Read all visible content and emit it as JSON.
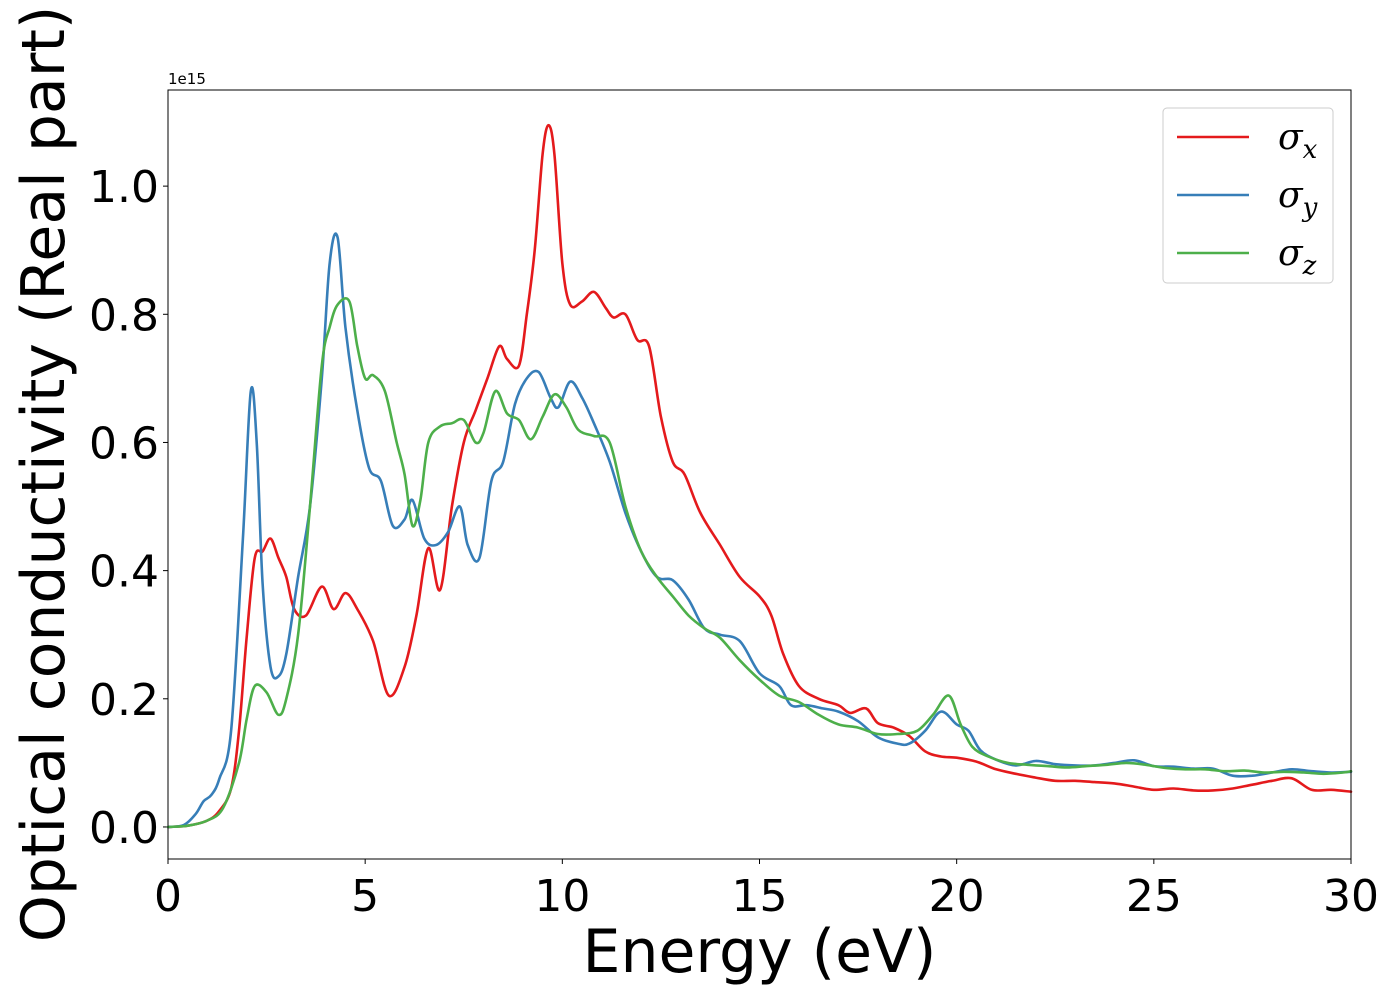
{
  "chart_data": {
    "type": "line",
    "xlabel": "Energy (eV)",
    "ylabel": "Optical conductivity (Real part)",
    "offset_text": "1e15",
    "xlim": [
      0,
      30
    ],
    "ylim": [
      -0.05,
      1.15
    ],
    "xticks": [
      0,
      5,
      10,
      15,
      20,
      25,
      30
    ],
    "yticks": [
      0.0,
      0.2,
      0.4,
      0.6,
      0.8,
      1.0
    ],
    "ytick_labels": [
      "0.0",
      "0.2",
      "0.4",
      "0.6",
      "0.8",
      "1.0"
    ],
    "grid": false,
    "legend_position": "top-right",
    "series": [
      {
        "name": "σ",
        "subscript": "x",
        "color": "#e41a1c",
        "x": [
          0,
          0.5,
          1.0,
          1.3,
          1.6,
          1.8,
          2.0,
          2.2,
          2.4,
          2.6,
          2.8,
          3.0,
          3.2,
          3.5,
          3.9,
          4.2,
          4.5,
          4.8,
          5.2,
          5.6,
          6.0,
          6.3,
          6.6,
          6.9,
          7.2,
          7.5,
          7.8,
          8.1,
          8.4,
          8.6,
          8.9,
          9.1,
          9.3,
          9.5,
          9.65,
          9.8,
          10.0,
          10.2,
          10.5,
          10.8,
          11.1,
          11.3,
          11.6,
          11.9,
          12.2,
          12.5,
          12.8,
          13.1,
          13.5,
          14.0,
          14.5,
          15.0,
          15.3,
          15.6,
          16.0,
          16.5,
          17.0,
          17.3,
          17.7,
          18.0,
          18.4,
          18.8,
          19.2,
          19.6,
          20.0,
          20.5,
          21.0,
          21.5,
          22.0,
          22.5,
          23.0,
          23.5,
          24.0,
          24.5,
          25.0,
          25.5,
          26.0,
          26.5,
          27.0,
          27.5,
          28.0,
          28.5,
          29.0,
          29.5,
          30.0
        ],
        "y": [
          0,
          0.002,
          0.01,
          0.025,
          0.06,
          0.15,
          0.3,
          0.42,
          0.43,
          0.45,
          0.42,
          0.39,
          0.34,
          0.33,
          0.375,
          0.34,
          0.365,
          0.34,
          0.29,
          0.205,
          0.25,
          0.33,
          0.435,
          0.37,
          0.5,
          0.6,
          0.65,
          0.7,
          0.75,
          0.73,
          0.72,
          0.8,
          0.9,
          1.05,
          1.095,
          1.05,
          0.88,
          0.815,
          0.82,
          0.835,
          0.81,
          0.795,
          0.8,
          0.76,
          0.75,
          0.64,
          0.57,
          0.55,
          0.49,
          0.44,
          0.39,
          0.36,
          0.33,
          0.27,
          0.22,
          0.2,
          0.19,
          0.178,
          0.185,
          0.162,
          0.155,
          0.142,
          0.118,
          0.11,
          0.108,
          0.102,
          0.09,
          0.083,
          0.077,
          0.072,
          0.072,
          0.07,
          0.068,
          0.063,
          0.058,
          0.06,
          0.057,
          0.057,
          0.06,
          0.066,
          0.072,
          0.076,
          0.058,
          0.058,
          0.055
        ]
      },
      {
        "name": "σ",
        "subscript": "y",
        "color": "#377eb8",
        "x": [
          0,
          0.4,
          0.7,
          0.9,
          1.1,
          1.3,
          1.6,
          1.9,
          2.1,
          2.25,
          2.4,
          2.6,
          2.8,
          3.0,
          3.3,
          3.6,
          3.9,
          4.1,
          4.3,
          4.5,
          4.8,
          5.1,
          5.4,
          5.7,
          6.0,
          6.2,
          6.5,
          6.8,
          7.1,
          7.4,
          7.6,
          7.9,
          8.2,
          8.5,
          8.8,
          9.1,
          9.4,
          9.7,
          9.9,
          10.2,
          10.5,
          10.8,
          11.2,
          11.6,
          12.0,
          12.4,
          12.8,
          13.2,
          13.6,
          14.0,
          14.5,
          15.0,
          15.5,
          15.8,
          16.2,
          16.6,
          17.0,
          17.5,
          18.0,
          18.5,
          18.8,
          19.2,
          19.6,
          20.0,
          20.3,
          20.6,
          21.0,
          21.5,
          22.0,
          22.5,
          23.0,
          23.5,
          24.0,
          24.5,
          25.0,
          25.5,
          26.0,
          26.5,
          27.0,
          27.5,
          28.0,
          28.5,
          29.0,
          29.5,
          30.0
        ],
        "y": [
          0,
          0.003,
          0.02,
          0.04,
          0.05,
          0.075,
          0.15,
          0.45,
          0.68,
          0.6,
          0.38,
          0.25,
          0.235,
          0.27,
          0.39,
          0.5,
          0.7,
          0.88,
          0.92,
          0.78,
          0.65,
          0.56,
          0.54,
          0.47,
          0.48,
          0.51,
          0.45,
          0.44,
          0.46,
          0.5,
          0.44,
          0.42,
          0.54,
          0.57,
          0.66,
          0.7,
          0.71,
          0.67,
          0.655,
          0.695,
          0.67,
          0.63,
          0.57,
          0.49,
          0.43,
          0.39,
          0.385,
          0.355,
          0.31,
          0.3,
          0.29,
          0.24,
          0.22,
          0.19,
          0.19,
          0.185,
          0.18,
          0.165,
          0.14,
          0.13,
          0.13,
          0.15,
          0.18,
          0.16,
          0.15,
          0.12,
          0.105,
          0.096,
          0.103,
          0.098,
          0.096,
          0.096,
          0.1,
          0.104,
          0.095,
          0.094,
          0.091,
          0.091,
          0.08,
          0.08,
          0.085,
          0.09,
          0.087,
          0.085,
          0.086
        ]
      },
      {
        "name": "σ",
        "subscript": "z",
        "color": "#4daf4a",
        "x": [
          0,
          0.5,
          1.0,
          1.4,
          1.8,
          2.0,
          2.2,
          2.5,
          2.8,
          3.0,
          3.3,
          3.6,
          3.9,
          4.1,
          4.3,
          4.6,
          4.8,
          5.0,
          5.2,
          5.5,
          5.8,
          6.0,
          6.2,
          6.4,
          6.6,
          6.9,
          7.2,
          7.5,
          7.8,
          8.0,
          8.3,
          8.6,
          8.9,
          9.2,
          9.5,
          9.8,
          10.1,
          10.4,
          10.8,
          11.2,
          11.6,
          12.0,
          12.4,
          12.8,
          13.2,
          13.6,
          14.0,
          14.5,
          15.0,
          15.5,
          16.0,
          16.5,
          17.0,
          17.5,
          18.0,
          18.5,
          19.0,
          19.4,
          19.8,
          20.1,
          20.4,
          20.8,
          21.3,
          21.8,
          22.3,
          22.8,
          23.3,
          23.8,
          24.3,
          24.8,
          25.3,
          25.8,
          26.3,
          26.8,
          27.3,
          27.8,
          28.3,
          28.8,
          29.3,
          29.8,
          30.0
        ],
        "y": [
          0,
          0.002,
          0.01,
          0.03,
          0.1,
          0.17,
          0.22,
          0.21,
          0.175,
          0.2,
          0.3,
          0.5,
          0.72,
          0.78,
          0.815,
          0.82,
          0.75,
          0.7,
          0.705,
          0.68,
          0.6,
          0.55,
          0.47,
          0.51,
          0.6,
          0.625,
          0.63,
          0.635,
          0.6,
          0.615,
          0.68,
          0.645,
          0.635,
          0.605,
          0.64,
          0.675,
          0.655,
          0.62,
          0.61,
          0.6,
          0.5,
          0.43,
          0.39,
          0.36,
          0.33,
          0.31,
          0.295,
          0.26,
          0.23,
          0.205,
          0.195,
          0.175,
          0.16,
          0.155,
          0.145,
          0.145,
          0.15,
          0.175,
          0.205,
          0.16,
          0.125,
          0.11,
          0.1,
          0.097,
          0.095,
          0.093,
          0.095,
          0.097,
          0.1,
          0.097,
          0.092,
          0.09,
          0.09,
          0.087,
          0.088,
          0.085,
          0.086,
          0.085,
          0.083,
          0.085,
          0.087
        ]
      }
    ]
  }
}
